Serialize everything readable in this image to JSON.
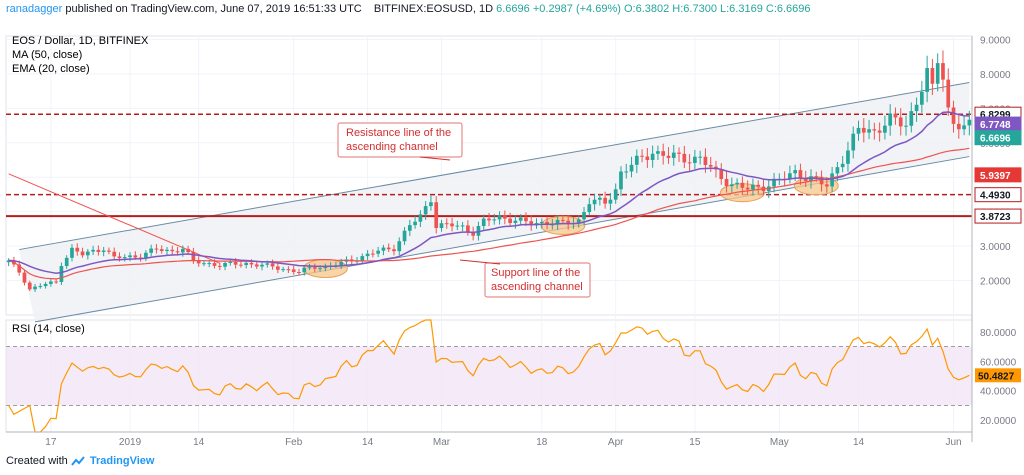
{
  "header": {
    "author": "ranadagger",
    "published": "published on TradingView.com, June 07, 2019 16:51:33 UTC",
    "symbol": "BITFINEX:EOSUSD, 1D",
    "last": "6.6696",
    "change": "+0.2987 (+4.69%)",
    "ohlc": "O:6.3802 H:6.7300 L:6.3169 C:6.6696"
  },
  "legend": {
    "title": "EOS / Dollar, 1D, BITFINEX",
    "ma": "MA (50, close)",
    "ema": "EMA (20, close)"
  },
  "rsi_label": "RSI (14, close)",
  "annotations": {
    "resistance": [
      "Resistance line of the",
      "ascending channel"
    ],
    "support": [
      "Support line of the",
      "ascending channel"
    ]
  },
  "price_badges": [
    {
      "value": "6.8299",
      "bg": "#ffffff",
      "fg": "#131722",
      "border": "#b71c1c"
    },
    {
      "value": "6.7748",
      "bg": "#7e57c2",
      "fg": "#ffffff",
      "border": "#7e57c2"
    },
    {
      "value": "6.6696",
      "bg": "#26a69a",
      "fg": "#ffffff",
      "border": "#26a69a"
    },
    {
      "value": "5.9397",
      "bg": "#e53935",
      "fg": "#ffffff",
      "border": "#e53935"
    },
    {
      "value": "4.4930",
      "bg": "#ffffff",
      "fg": "#131722",
      "border": "#b71c1c"
    },
    {
      "value": "3.8723",
      "bg": "#ffffff",
      "fg": "#131722",
      "border": "#b71c1c"
    }
  ],
  "rsi_badge": {
    "value": "50.4827",
    "bg": "#ff9800",
    "fg": "#131722"
  },
  "footer": {
    "prefix": "Created with",
    "brand": "TradingView"
  },
  "colors": {
    "up": "#26a69a",
    "down": "#ef5350",
    "ma": "#ef5350",
    "ema": "#7e57c2",
    "level": "#b71c1c",
    "channel": "#6b8ba4",
    "rsi": "#ff9800",
    "highlight": "#f7c58a"
  },
  "chart_data": {
    "type": "candlestick",
    "title": "EOS / Dollar, 1D, BITFINEX",
    "y_ticks": [
      "9.0000",
      "8.0000",
      "7.0000",
      "6.0000",
      "5.0000",
      "4.0000",
      "3.0000",
      "2.0000"
    ],
    "y_tick_values": [
      9,
      8,
      7,
      6,
      5,
      4,
      3,
      2
    ],
    "ylim": [
      1.0,
      9.1
    ],
    "x_ticks": [
      "17",
      "2019",
      "14",
      "Feb",
      "14",
      "Mar",
      "18",
      "Apr",
      "15",
      "May",
      "14",
      "Jun"
    ],
    "x_tick_days": [
      8,
      23,
      36,
      54,
      68,
      82,
      101,
      115,
      130,
      146,
      161,
      179
    ],
    "n_days": 183,
    "horizontal_levels": [
      6.8299,
      4.493,
      3.8723
    ],
    "channel": {
      "upper": [
        [
          2,
          2.9
        ],
        [
          182,
          7.75
        ]
      ],
      "lower": [
        [
          5,
          0.8
        ],
        [
          182,
          5.6
        ]
      ]
    },
    "highlight_zones": [
      {
        "day": 60,
        "price": 2.35,
        "label": "support touch Feb"
      },
      {
        "day": 105,
        "price": 3.6,
        "label": "support touch Mar"
      },
      {
        "day": 139,
        "price": 4.55,
        "label": "support touch Apr"
      },
      {
        "day": 153,
        "price": 4.75,
        "label": "support touch May"
      }
    ],
    "price_anchors": [
      [
        0,
        2.55
      ],
      [
        2,
        2.25
      ],
      [
        4,
        1.75
      ],
      [
        7,
        1.9
      ],
      [
        9,
        1.95
      ],
      [
        10,
        2.5
      ],
      [
        12,
        2.9
      ],
      [
        14,
        2.75
      ],
      [
        16,
        2.85
      ],
      [
        18,
        2.95
      ],
      [
        20,
        2.65
      ],
      [
        24,
        2.7
      ],
      [
        28,
        2.9
      ],
      [
        31,
        2.85
      ],
      [
        33,
        2.95
      ],
      [
        35,
        2.55
      ],
      [
        40,
        2.45
      ],
      [
        45,
        2.5
      ],
      [
        50,
        2.4
      ],
      [
        55,
        2.25
      ],
      [
        58,
        2.4
      ],
      [
        60,
        2.4
      ],
      [
        63,
        2.5
      ],
      [
        66,
        2.65
      ],
      [
        70,
        2.85
      ],
      [
        73,
        2.95
      ],
      [
        76,
        3.6
      ],
      [
        78,
        3.85
      ],
      [
        80,
        4.4
      ],
      [
        81,
        3.6
      ],
      [
        84,
        3.6
      ],
      [
        86,
        3.55
      ],
      [
        88,
        3.4
      ],
      [
        90,
        3.7
      ],
      [
        93,
        3.85
      ],
      [
        96,
        3.75
      ],
      [
        99,
        3.65
      ],
      [
        102,
        3.7
      ],
      [
        105,
        3.65
      ],
      [
        108,
        3.75
      ],
      [
        110,
        4.3
      ],
      [
        113,
        4.25
      ],
      [
        115,
        4.65
      ],
      [
        116,
        5.15
      ],
      [
        118,
        5.35
      ],
      [
        120,
        5.55
      ],
      [
        122,
        5.75
      ],
      [
        125,
        5.6
      ],
      [
        128,
        5.55
      ],
      [
        131,
        5.55
      ],
      [
        134,
        5.1
      ],
      [
        137,
        4.8
      ],
      [
        140,
        4.65
      ],
      [
        143,
        4.75
      ],
      [
        146,
        4.9
      ],
      [
        149,
        5.15
      ],
      [
        152,
        4.95
      ],
      [
        155,
        4.75
      ],
      [
        157,
        5.35
      ],
      [
        159,
        5.75
      ],
      [
        161,
        6.4
      ],
      [
        164,
        6.35
      ],
      [
        167,
        6.65
      ],
      [
        170,
        6.55
      ],
      [
        172,
        7.2
      ],
      [
        174,
        8.0
      ],
      [
        175,
        7.5
      ],
      [
        176,
        8.4
      ],
      [
        177,
        8.0
      ],
      [
        178,
        7.0
      ],
      [
        179,
        6.55
      ],
      [
        181,
        6.45
      ],
      [
        182,
        6.6696
      ]
    ],
    "rsi": {
      "y_ticks": [
        "80.0000",
        "60.0000",
        "40.0000",
        "20.0000"
      ],
      "y_tick_values": [
        80,
        60,
        40,
        20
      ],
      "ylim": [
        12,
        88
      ],
      "band": [
        30,
        70
      ],
      "last": 50.4827
    }
  }
}
